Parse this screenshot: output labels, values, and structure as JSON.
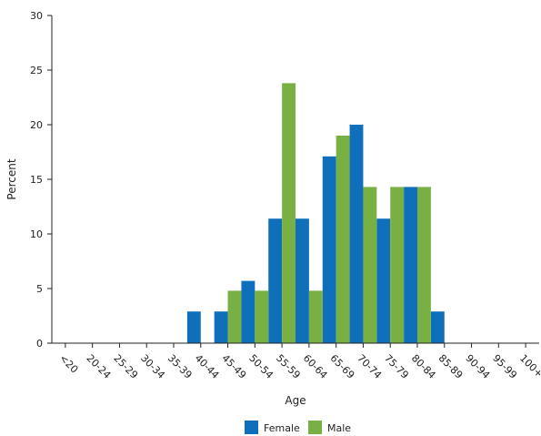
{
  "chart_data": {
    "type": "bar",
    "title": "",
    "xlabel": "Age",
    "ylabel": "Percent",
    "ylim": [
      0,
      30
    ],
    "yticks": [
      0,
      5,
      10,
      15,
      20,
      25,
      30
    ],
    "grid": false,
    "legend_position": "bottom-center",
    "categories": [
      "<20",
      "20-24",
      "25-29",
      "30-34",
      "35-39",
      "40-44",
      "45-49",
      "50-54",
      "55-59",
      "60-64",
      "65-69",
      "70-74",
      "75-79",
      "80-84",
      "85-89",
      "90-94",
      "95-99",
      "100+"
    ],
    "series": [
      {
        "name": "Female",
        "color": "#0f6fba",
        "values": [
          0,
          0,
          0,
          0,
          0,
          2.9,
          2.9,
          5.7,
          11.4,
          11.4,
          17.1,
          20.0,
          11.4,
          14.3,
          2.9,
          0,
          0,
          0
        ]
      },
      {
        "name": "Male",
        "color": "#79b043",
        "values": [
          0,
          0,
          0,
          0,
          0,
          0,
          4.8,
          4.8,
          23.8,
          4.8,
          19.0,
          14.3,
          14.3,
          14.3,
          0,
          0,
          0,
          0
        ]
      }
    ]
  }
}
